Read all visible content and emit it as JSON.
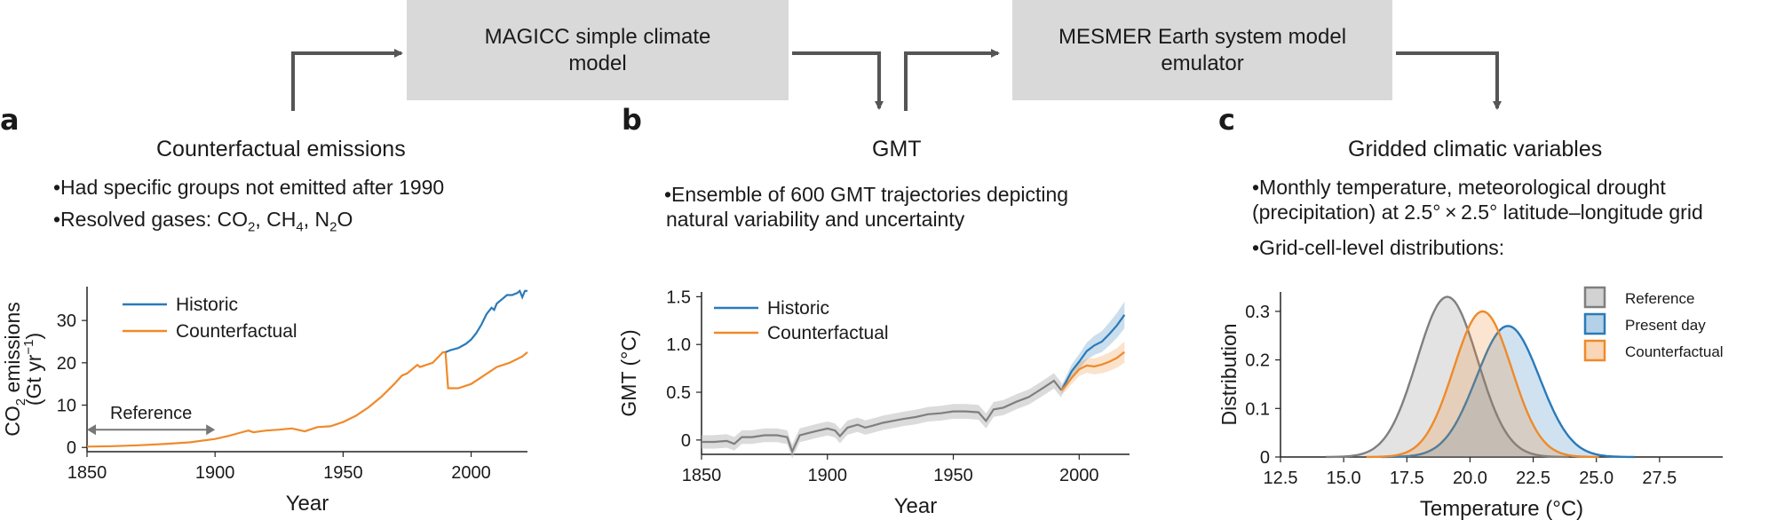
{
  "flow": {
    "box1": "MAGICC simple climate\nmodel",
    "box2": "MESMER Earth system model\nemulator"
  },
  "panel_a": {
    "label": "a",
    "title": "Counterfactual emissions",
    "bullet1": "•Had specific groups not emitted after 1990",
    "bullet2_prefix": "•Resolved gases: ",
    "gas1": "CO",
    "gas1_sub": "2",
    "gas2": "CH",
    "gas2_sub": "4",
    "gas3": "N",
    "gas3_sub": "2",
    "gas3_suffix": "O"
  },
  "panel_b": {
    "label": "b",
    "title": "GMT",
    "bullet1": "•Ensemble of 600 GMT trajectories depicting",
    "bullet1_cont": "natural variability and uncertainty"
  },
  "panel_c": {
    "label": "c",
    "title": "Gridded climatic variables",
    "bullet1": "•Monthly temperature, meteorological drought",
    "bullet1_cont": "(precipitation) at 2.5° × 2.5° latitude–longitude grid",
    "bullet2": "•Grid-cell-level distributions:"
  },
  "colors": {
    "historic": "#2a7ab9",
    "counterfactual": "#ef8a2b",
    "reference": "#7f7f7f",
    "box": "#d9d9d9"
  },
  "chart_data": [
    {
      "id": "a",
      "type": "line",
      "title": "",
      "xlabel": "Year",
      "ylabel_line1": "CO",
      "ylabel_sub": "2",
      "ylabel_line1_rest": " emissions",
      "ylabel_line2": "(Gt yr",
      "ylabel_sup": "−1",
      "ylabel_line2_end": ")",
      "xlim": [
        1850,
        2022
      ],
      "ylim": [
        -1,
        38
      ],
      "xticks": [
        1850,
        1900,
        1950,
        2000
      ],
      "yticks": [
        0,
        10,
        20,
        30
      ],
      "legend": [
        "Historic",
        "Counterfactual"
      ],
      "annotation": "Reference",
      "annotation_range": [
        1850,
        1900
      ],
      "series": [
        {
          "name": "Historic",
          "x": [
            1990,
            1992,
            1995,
            1998,
            2000,
            2002,
            2004,
            2006,
            2008,
            2009,
            2010,
            2012,
            2014,
            2016,
            2018,
            2019,
            2020,
            2021,
            2022
          ],
          "values": [
            22.5,
            23,
            23.5,
            24.5,
            25.5,
            27,
            29,
            31.5,
            33,
            32.5,
            34,
            35,
            36,
            36,
            36.5,
            37,
            35.5,
            37,
            37
          ]
        },
        {
          "name": "Counterfactual",
          "x": [
            1850,
            1860,
            1870,
            1880,
            1890,
            1900,
            1905,
            1910,
            1913,
            1915,
            1920,
            1925,
            1930,
            1935,
            1940,
            1945,
            1950,
            1955,
            1960,
            1965,
            1970,
            1973,
            1975,
            1979,
            1980,
            1985,
            1989,
            1990,
            1991,
            1995,
            2000,
            2005,
            2010,
            2015,
            2020,
            2022
          ],
          "values": [
            0.2,
            0.3,
            0.5,
            0.8,
            1.2,
            2.0,
            2.7,
            3.5,
            4.0,
            3.6,
            4.0,
            4.2,
            4.5,
            3.8,
            4.8,
            5.0,
            6.0,
            7.5,
            9.5,
            12.0,
            15.0,
            17.0,
            17.5,
            19.5,
            19.0,
            20.0,
            22.5,
            22.5,
            14,
            14,
            15,
            17,
            19,
            20,
            21.5,
            22.5
          ]
        }
      ]
    },
    {
      "id": "b",
      "type": "line",
      "title": "",
      "xlabel": "Year",
      "ylabel": "GMT (°C)",
      "xlim": [
        1850,
        2020
      ],
      "ylim": [
        -0.15,
        1.55
      ],
      "xticks": [
        1850,
        1900,
        1950,
        2000
      ],
      "yticks": [
        0,
        0.5,
        1.0,
        1.5
      ],
      "ytick_labels": [
        "0",
        "0.5",
        "1.0",
        "1.5"
      ],
      "legend": [
        "Historic",
        "Counterfactual"
      ],
      "series": [
        {
          "name": "Reference",
          "x": [
            1850,
            1855,
            1860,
            1863,
            1866,
            1870,
            1875,
            1880,
            1884,
            1886,
            1889,
            1892,
            1895,
            1900,
            1903,
            1905,
            1908,
            1912,
            1915,
            1918,
            1922,
            1926,
            1930,
            1935,
            1940,
            1945,
            1950,
            1955,
            1960,
            1963,
            1966,
            1970,
            1975,
            1980,
            1983,
            1986,
            1990,
            1993
          ],
          "values": [
            -0.02,
            -0.02,
            -0.01,
            -0.04,
            0.03,
            0.03,
            0.05,
            0.05,
            0.03,
            -0.12,
            0.05,
            0.07,
            0.09,
            0.12,
            0.1,
            0.04,
            0.13,
            0.16,
            0.13,
            0.15,
            0.18,
            0.2,
            0.22,
            0.24,
            0.27,
            0.28,
            0.3,
            0.3,
            0.29,
            0.2,
            0.32,
            0.34,
            0.4,
            0.45,
            0.5,
            0.55,
            0.62,
            0.52
          ]
        },
        {
          "name": "Historic",
          "x": [
            1993,
            1995,
            1997,
            2000,
            2003,
            2006,
            2009,
            2012,
            2015,
            2018
          ],
          "values": [
            0.52,
            0.62,
            0.72,
            0.82,
            0.93,
            0.99,
            1.03,
            1.11,
            1.2,
            1.31
          ]
        },
        {
          "name": "Counterfactual",
          "x": [
            1993,
            1995,
            1997,
            2000,
            2003,
            2006,
            2009,
            2012,
            2015,
            2018
          ],
          "values": [
            0.52,
            0.58,
            0.65,
            0.74,
            0.78,
            0.77,
            0.79,
            0.82,
            0.86,
            0.92
          ]
        }
      ]
    },
    {
      "id": "c",
      "type": "area",
      "title": "",
      "xlabel": "Temperature (°C)",
      "ylabel": "Distribution",
      "xlim": [
        12.5,
        30.0
      ],
      "ylim": [
        0,
        0.34
      ],
      "xticks": [
        12.5,
        15.0,
        17.5,
        20.0,
        22.5,
        25.0,
        27.5
      ],
      "xtick_labels": [
        "12.5",
        "15.0",
        "17.5",
        "20.0",
        "22.5",
        "25.0",
        "27.5"
      ],
      "yticks": [
        0,
        0.1,
        0.2,
        0.3
      ],
      "ytick_labels": [
        "0",
        "0.1",
        "0.2",
        "0.3"
      ],
      "legend": [
        "Reference",
        "Present day",
        "Counterfactual"
      ],
      "series": [
        {
          "name": "Reference",
          "mean": 19.1,
          "sd": 1.2,
          "peak": 0.33
        },
        {
          "name": "Present day",
          "mean": 21.5,
          "sd": 1.25,
          "peak": 0.27
        },
        {
          "name": "Counterfactual",
          "mean": 20.5,
          "sd": 1.15,
          "peak": 0.3
        }
      ]
    }
  ]
}
